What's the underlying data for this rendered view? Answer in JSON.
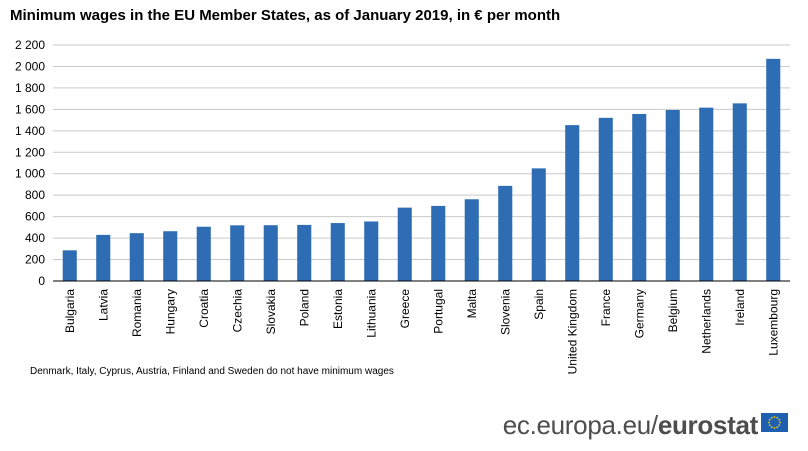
{
  "chart_data": {
    "type": "bar",
    "title": "Minimum  wages in the EU Member States, as of January 2019, in € per month",
    "categories": [
      "Bulgaria",
      "Latvia",
      "Romania",
      "Hungary",
      "Croatia",
      "Czechia",
      "Slovakia",
      "Poland",
      "Estonia",
      "Lithuania",
      "Greece",
      "Portugal",
      "Malta",
      "Slovenia",
      "Spain",
      "United Kingdom",
      "France",
      "Germany",
      "Belgium",
      "Netherlands",
      "Ireland",
      "Luxembourg"
    ],
    "values": [
      286,
      430,
      446,
      464,
      506,
      519,
      520,
      523,
      540,
      555,
      684,
      700,
      762,
      887,
      1050,
      1453,
      1521,
      1557,
      1594,
      1616,
      1656,
      2071
    ],
    "xlabel": "",
    "ylabel": "",
    "ylim": [
      0,
      2200
    ],
    "yticks": [
      0,
      200,
      400,
      600,
      800,
      1000,
      1200,
      1400,
      1600,
      1800,
      2000,
      2200
    ],
    "ytick_labels": [
      "0",
      "200",
      "400",
      "600",
      "800",
      "1 000",
      "1 200",
      "1 400",
      "1 600",
      "1 800",
      "2 000",
      "2 200"
    ],
    "grid": true,
    "legend": "none",
    "bar_color": "#2e6db4",
    "grid_color": "#c9c9c9"
  },
  "note": "Denmark, Italy, Cyprus, Austria, Finland and Sweden do not have minimum  wages",
  "footer": {
    "site": "ec.europa.eu/",
    "brand": "eurostat",
    "flag_color": "#1f5fb0",
    "star_color": "#ffd000"
  }
}
